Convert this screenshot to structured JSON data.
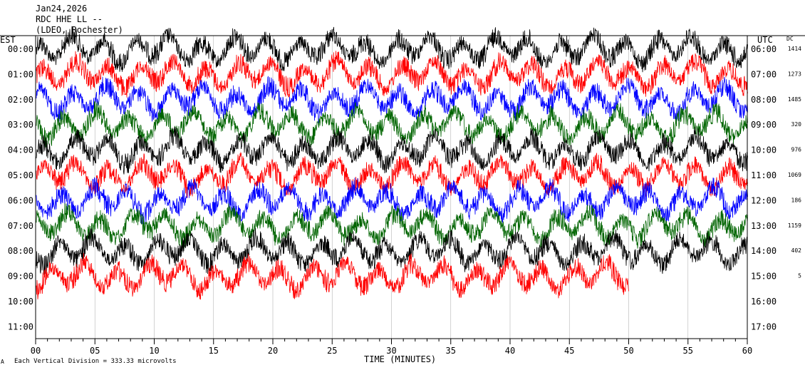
{
  "header": {
    "date": "Jan24,2026",
    "station": "RDC HHE LL --",
    "network": "(LDEO, Rochester)"
  },
  "left_axis_title": "EST",
  "right_axis_title": "UTC",
  "dc_title": "DC",
  "footer_note": "Each Vertical Division = 333.33 microvolts",
  "footer_mark": "A",
  "colors": {
    "black": "#000000",
    "red": "#ff0000",
    "blue": "#0000ff",
    "green": "#006400"
  },
  "chart_data": {
    "type": "line",
    "title": "RDC HHE LL --",
    "xlabel": "TIME (MINUTES)",
    "x_ticks": [
      "00",
      "05",
      "10",
      "15",
      "20",
      "25",
      "30",
      "35",
      "40",
      "45",
      "50",
      "55",
      "60"
    ],
    "x_range": [
      0,
      60
    ],
    "grid": true,
    "rows": [
      {
        "est": "00:00",
        "utc": "06:00",
        "dc": "1414",
        "color": "black",
        "end_minute": 60
      },
      {
        "est": "01:00",
        "utc": "07:00",
        "dc": "1273",
        "color": "red",
        "end_minute": 60
      },
      {
        "est": "02:00",
        "utc": "08:00",
        "dc": "1485",
        "color": "blue",
        "end_minute": 60
      },
      {
        "est": "03:00",
        "utc": "09:00",
        "dc": "320",
        "color": "green",
        "end_minute": 60
      },
      {
        "est": "04:00",
        "utc": "10:00",
        "dc": "976",
        "color": "black",
        "end_minute": 60
      },
      {
        "est": "05:00",
        "utc": "11:00",
        "dc": "1069",
        "color": "red",
        "end_minute": 60
      },
      {
        "est": "06:00",
        "utc": "12:00",
        "dc": "186",
        "color": "blue",
        "end_minute": 60
      },
      {
        "est": "07:00",
        "utc": "13:00",
        "dc": "1159",
        "color": "green",
        "end_minute": 60
      },
      {
        "est": "08:00",
        "utc": "14:00",
        "dc": "402",
        "color": "black",
        "end_minute": 60
      },
      {
        "est": "09:00",
        "utc": "15:00",
        "dc": "5",
        "color": "red",
        "end_minute": 50
      },
      {
        "est": "10:00",
        "utc": "16:00",
        "dc": "",
        "color": "",
        "end_minute": 0
      },
      {
        "est": "11:00",
        "utc": "17:00",
        "dc": "",
        "color": "",
        "end_minute": 0
      }
    ]
  }
}
